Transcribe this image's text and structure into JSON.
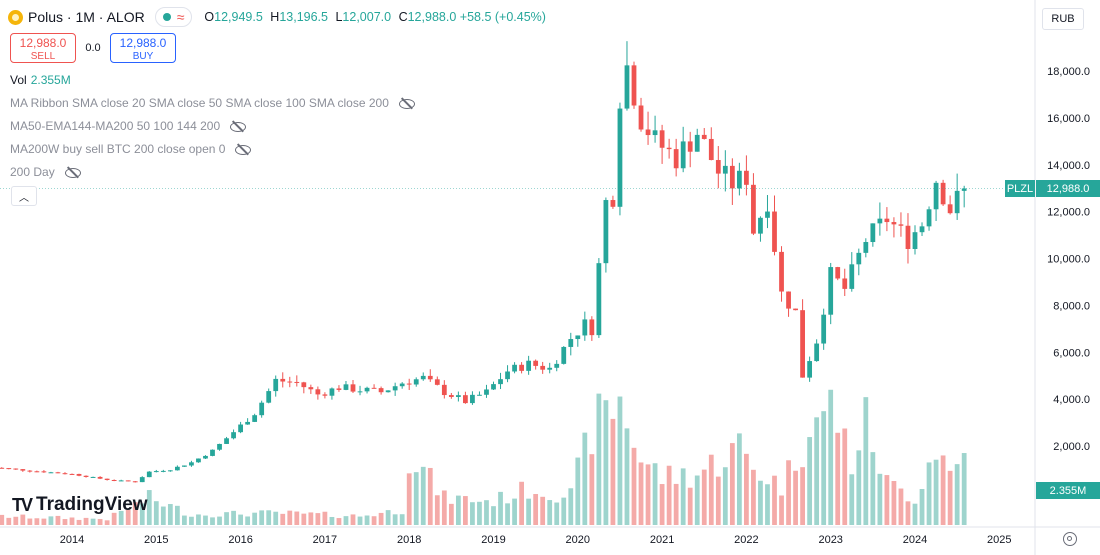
{
  "header": {
    "symbol": "Polus · 1M · ALOR",
    "o_label": "O",
    "o": "12,949.5",
    "h_label": "H",
    "h": "13,196.5",
    "l_label": "L",
    "l": "12,007.0",
    "c_label": "C",
    "c": "12,988.0",
    "change": "+58.5 (+0.45%)"
  },
  "currency": "RUB",
  "trade": {
    "sell_price": "12,988.0",
    "sell_label": "SELL",
    "spread": "0.0",
    "buy_price": "12,988.0",
    "buy_label": "BUY"
  },
  "volume": {
    "label": "Vol",
    "value": "2.355M"
  },
  "indicators": [
    "MA Ribbon SMA close 20 SMA close 50 SMA close 100 SMA close 200",
    "MA50-EMA144-MA200 50 100 144 200",
    "MA200W buy sell BTC 200 close open 0",
    "200 Day"
  ],
  "collapse_icon": "chevron-up-icon",
  "brand": "TradingView",
  "price_tag": {
    "ticker": "PLZL",
    "price": "12,988.0"
  },
  "volume_tag": "2.355M",
  "colors": {
    "up": "#26a69a",
    "down": "#ef5350",
    "vol_up": "#9ed4cd",
    "vol_down": "#f4aaa8"
  },
  "chart_data": {
    "type": "candlestick",
    "interval": "1M",
    "y_ticks": [
      "2,000.0",
      "4,000.0",
      "6,000.0",
      "8,000.0",
      "10,000.0",
      "12,000.0",
      "14,000.0",
      "16,000.0",
      "18,000.0"
    ],
    "x_ticks": [
      "2014",
      "2015",
      "2016",
      "2017",
      "2018",
      "2019",
      "2020",
      "2021",
      "2022",
      "2023",
      "2024",
      "2025"
    ],
    "ohlc_anchors": [
      [
        "2013-01",
        1100
      ],
      [
        "2013-07",
        950
      ],
      [
        "2014-01",
        800
      ],
      [
        "2014-06",
        560
      ],
      [
        "2014-10",
        470
      ],
      [
        "2014-12",
        900
      ],
      [
        "2015-03",
        1000
      ],
      [
        "2015-06",
        1300
      ],
      [
        "2015-09",
        1800
      ],
      [
        "2015-12",
        2600
      ],
      [
        "2016-03",
        3400
      ],
      [
        "2016-06",
        4800
      ],
      [
        "2016-09",
        4700
      ],
      [
        "2016-12",
        4200
      ],
      [
        "2017-03",
        4500
      ],
      [
        "2017-06",
        4400
      ],
      [
        "2017-09",
        4300
      ],
      [
        "2017-12",
        4700
      ],
      [
        "2018-03",
        4900
      ],
      [
        "2018-06",
        4300
      ],
      [
        "2018-09",
        3900
      ],
      [
        "2018-12",
        4300
      ],
      [
        "2019-03",
        5200
      ],
      [
        "2019-06",
        5500
      ],
      [
        "2019-09",
        5300
      ],
      [
        "2019-12",
        6600
      ],
      [
        "2020-02",
        7200
      ],
      [
        "2020-03",
        7000
      ],
      [
        "2020-05",
        12400
      ],
      [
        "2020-06",
        12700
      ],
      [
        "2020-07",
        17000
      ],
      [
        "2020-08",
        18200
      ],
      [
        "2020-10",
        16000
      ],
      [
        "2020-12",
        15000
      ],
      [
        "2021-03",
        14300
      ],
      [
        "2021-06",
        15400
      ],
      [
        "2021-09",
        13700
      ],
      [
        "2021-11",
        13200
      ],
      [
        "2022-01",
        13500
      ],
      [
        "2022-02",
        11200
      ],
      [
        "2022-04",
        12500
      ],
      [
        "2022-06",
        8500
      ],
      [
        "2022-08",
        7700
      ],
      [
        "2022-09",
        5000
      ],
      [
        "2022-11",
        6500
      ],
      [
        "2023-01",
        9300
      ],
      [
        "2023-03",
        8700
      ],
      [
        "2023-06",
        10800
      ],
      [
        "2023-09",
        11700
      ],
      [
        "2023-12",
        10800
      ],
      [
        "2024-02",
        11500
      ],
      [
        "2024-04",
        13400
      ],
      [
        "2024-06",
        12100
      ],
      [
        "2024-08",
        12988
      ]
    ],
    "volume_profile_M": [
      [
        "2013-01",
        0.3
      ],
      [
        "2014-06",
        0.2
      ],
      [
        "2014-12",
        0.9
      ],
      [
        "2015-06",
        0.35
      ],
      [
        "2016-06",
        0.4
      ],
      [
        "2017-06",
        0.3
      ],
      [
        "2017-12",
        0.5
      ],
      [
        "2018-01",
        2.4
      ],
      [
        "2018-06",
        0.9
      ],
      [
        "2019-01",
        0.8
      ],
      [
        "2019-06",
        1.2
      ],
      [
        "2019-12",
        1.0
      ],
      [
        "2020-03",
        3.2
      ],
      [
        "2020-07",
        4.2
      ],
      [
        "2020-10",
        2.2
      ],
      [
        "2021-01",
        1.6
      ],
      [
        "2021-06",
        1.7
      ],
      [
        "2021-12",
        2.6
      ],
      [
        "2022-02",
        1.9
      ],
      [
        "2022-06",
        1.3
      ],
      [
        "2022-09",
        2.7
      ],
      [
        "2022-10",
        3.8
      ],
      [
        "2022-12",
        3.4
      ],
      [
        "2023-01",
        4.1
      ],
      [
        "2023-04",
        2.1
      ],
      [
        "2023-06",
        3.4
      ],
      [
        "2023-09",
        1.4
      ],
      [
        "2024-01",
        0.9
      ],
      [
        "2024-04",
        2.7
      ],
      [
        "2024-06",
        1.7
      ],
      [
        "2024-08",
        2.355
      ]
    ]
  }
}
